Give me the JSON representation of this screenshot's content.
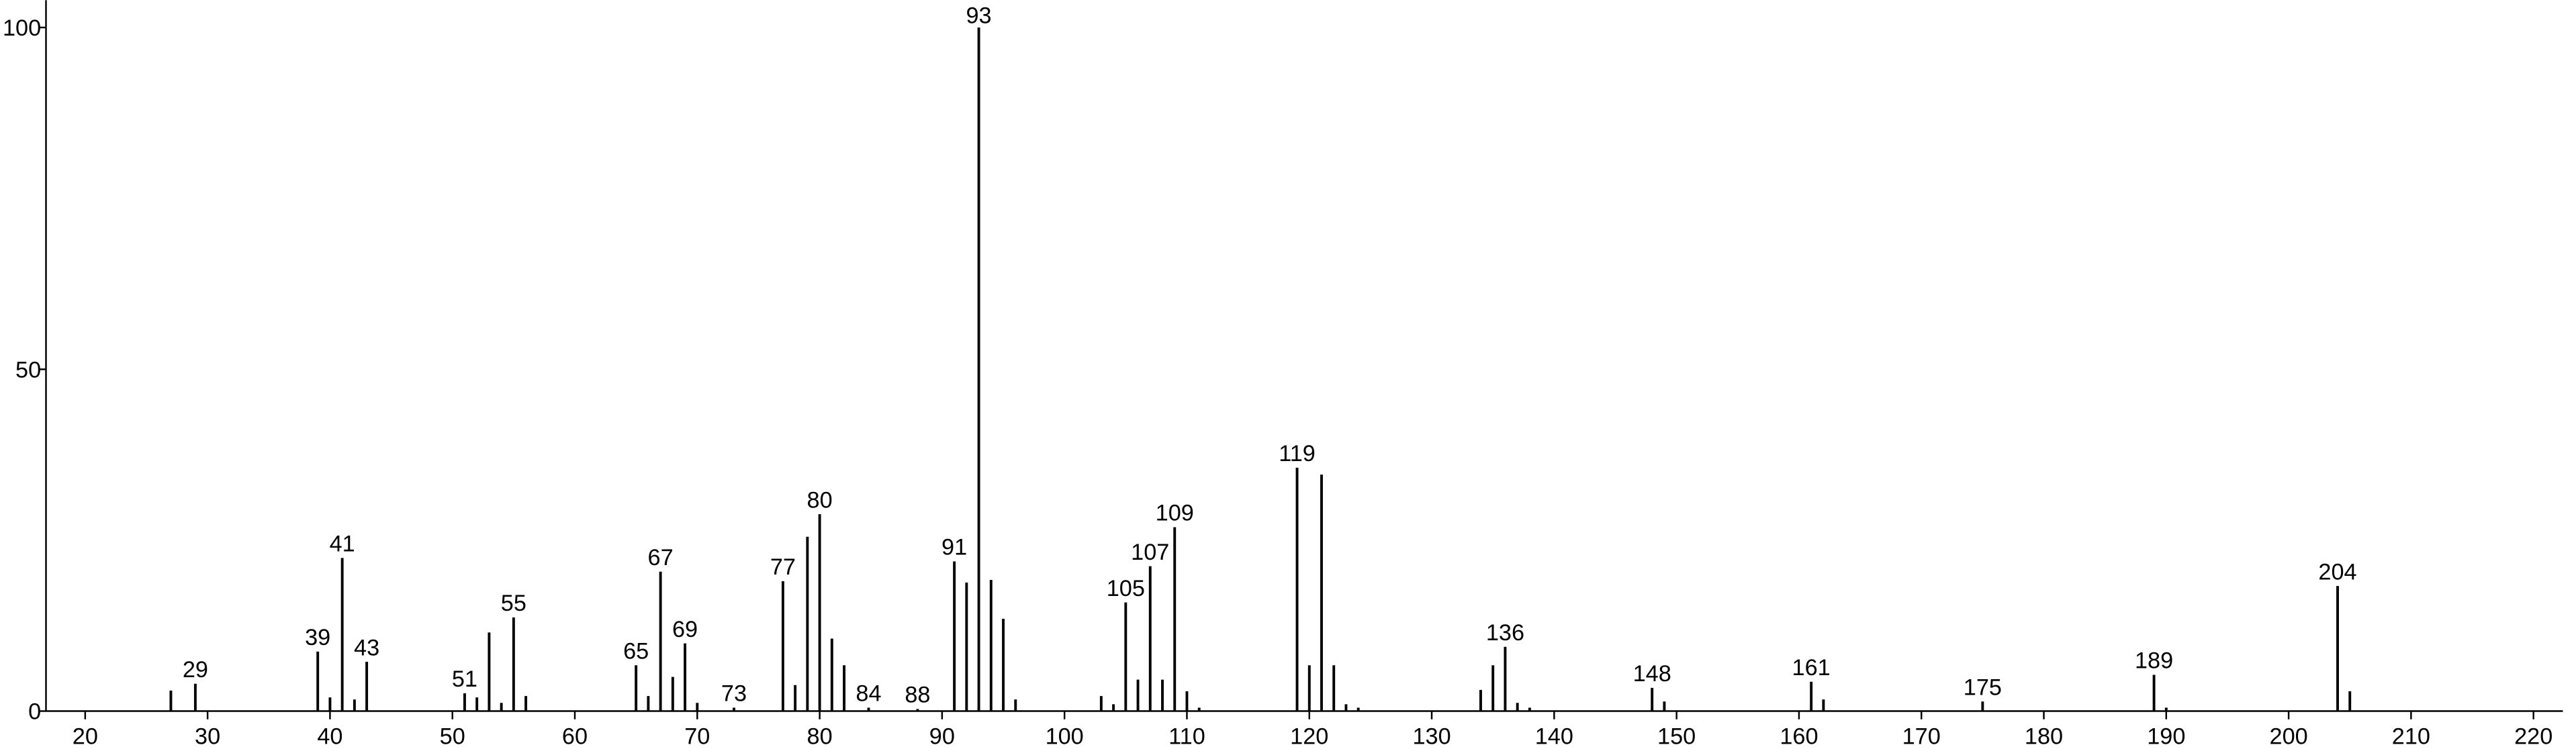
{
  "chart_data": {
    "type": "stem",
    "color": "#000000",
    "x": [
      27,
      29,
      39,
      40,
      41,
      42,
      43,
      51,
      52,
      53,
      54,
      55,
      56,
      65,
      66,
      67,
      68,
      69,
      70,
      73,
      77,
      78,
      79,
      80,
      81,
      82,
      84,
      88,
      91,
      92,
      93,
      94,
      95,
      96,
      103,
      104,
      105,
      106,
      107,
      108,
      109,
      110,
      111,
      119,
      120,
      121,
      122,
      123,
      124,
      134,
      135,
      136,
      137,
      138,
      148,
      149,
      161,
      162,
      175,
      189,
      190,
      204,
      205
    ],
    "values": [
      3,
      4,
      8.7,
      2,
      22.4,
      1.7,
      7.2,
      2.6,
      2,
      11.5,
      1.2,
      13.7,
      2.2,
      6.7,
      2.2,
      20.4,
      5,
      9.9,
      1.2,
      0.5,
      19,
      3.8,
      25.5,
      28.8,
      10.6,
      6.7,
      0.5,
      0.3,
      21.9,
      18.8,
      100,
      19.2,
      13.5,
      1.7,
      2.2,
      1,
      15.9,
      4.6,
      21.2,
      4.6,
      26.9,
      2.9,
      0.5,
      35.6,
      6.7,
      34.6,
      6.7,
      1,
      0.5,
      3.1,
      6.7,
      9.4,
      1.2,
      0.5,
      3.4,
      1.4,
      4.3,
      1.7,
      1.4,
      5.3,
      0.5,
      18.3,
      2.9
    ],
    "peak_labels": [
      29,
      39,
      41,
      43,
      51,
      55,
      65,
      67,
      69,
      73,
      77,
      80,
      84,
      88,
      91,
      93,
      105,
      107,
      109,
      119,
      136,
      148,
      161,
      175,
      189,
      204
    ],
    "xlim": [
      16.8,
      222.4
    ],
    "ylim": [
      0,
      104
    ],
    "xticks": [
      20,
      30,
      40,
      50,
      60,
      70,
      80,
      90,
      100,
      110,
      120,
      130,
      140,
      150,
      160,
      170,
      180,
      190,
      200,
      210,
      220
    ],
    "yticks": [
      0,
      50,
      100
    ]
  }
}
